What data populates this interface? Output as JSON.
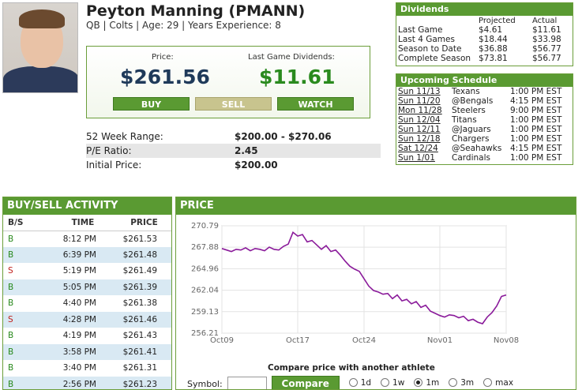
{
  "player": {
    "name": "Peyton Manning (PMANN)",
    "meta": "QB | Colts | Age: 29 | Years Experience: 8"
  },
  "pricebox": {
    "price_label": "Price:",
    "price_value": "$261.56",
    "dividend_label": "Last Game Dividends:",
    "dividend_value": "$11.61",
    "buy_label": "BUY",
    "sell_label": "SELL",
    "watch_label": "WATCH"
  },
  "stats": [
    {
      "label": "52 Week Range:",
      "value": "$200.00 - $270.06"
    },
    {
      "label": "P/E Ratio:",
      "value": "2.45"
    },
    {
      "label": "Initial Price:",
      "value": "$200.00"
    }
  ],
  "dividends": {
    "title": "Dividends",
    "col_projected": "Projected",
    "col_actual": "Actual",
    "rows": [
      {
        "label": "Last Game",
        "projected": "$4.61",
        "actual": "$11.61"
      },
      {
        "label": "Last 4 Games",
        "projected": "$18.44",
        "actual": "$33.98"
      },
      {
        "label": "Season to Date",
        "projected": "$36.88",
        "actual": "$56.77"
      },
      {
        "label": "Complete Season",
        "projected": "$73.81",
        "actual": "$56.77"
      }
    ]
  },
  "schedule": {
    "title": "Upcoming Schedule",
    "rows": [
      {
        "date": "Sun 11/13",
        "opponent": "Texans",
        "time": "1:00 PM EST"
      },
      {
        "date": "Sun 11/20",
        "opponent": "@Bengals",
        "time": "4:15 PM EST"
      },
      {
        "date": "Mon 11/28",
        "opponent": "Steelers",
        "time": "9:00 PM EST"
      },
      {
        "date": "Sun 12/04",
        "opponent": "Titans",
        "time": "1:00 PM EST"
      },
      {
        "date": "Sun 12/11",
        "opponent": "@Jaguars",
        "time": "1:00 PM EST"
      },
      {
        "date": "Sun 12/18",
        "opponent": "Chargers",
        "time": "1:00 PM EST"
      },
      {
        "date": "Sat 12/24",
        "opponent": "@Seahawks",
        "time": "4:15 PM EST"
      },
      {
        "date": "Sun 1/01",
        "opponent": "Cardinals",
        "time": "1:00 PM EST"
      }
    ]
  },
  "activity": {
    "title": "BUY/SELL ACTIVITY",
    "headers": [
      "B/S",
      "TIME",
      "PRICE"
    ],
    "rows": [
      {
        "bs": "B",
        "time": "8:12 PM",
        "price": "$261.53"
      },
      {
        "bs": "B",
        "time": "6:39 PM",
        "price": "$261.48"
      },
      {
        "bs": "S",
        "time": "5:19 PM",
        "price": "$261.49"
      },
      {
        "bs": "B",
        "time": "5:05 PM",
        "price": "$261.39"
      },
      {
        "bs": "B",
        "time": "4:40 PM",
        "price": "$261.38"
      },
      {
        "bs": "S",
        "time": "4:28 PM",
        "price": "$261.46"
      },
      {
        "bs": "B",
        "time": "4:19 PM",
        "price": "$261.43"
      },
      {
        "bs": "B",
        "time": "3:58 PM",
        "price": "$261.41"
      },
      {
        "bs": "B",
        "time": "3:40 PM",
        "price": "$261.31"
      },
      {
        "bs": "B",
        "time": "2:56 PM",
        "price": "$261.23"
      }
    ]
  },
  "price_panel": {
    "title": "PRICE",
    "compare_title": "Compare price with another athlete",
    "symbol_label": "Symbol:",
    "compare_button": "Compare",
    "ranges": [
      {
        "label": "1d",
        "selected": false
      },
      {
        "label": "1w",
        "selected": false
      },
      {
        "label": "1m",
        "selected": true
      },
      {
        "label": "3m",
        "selected": false
      },
      {
        "label": "max",
        "selected": false
      }
    ]
  },
  "chart_data": {
    "type": "line",
    "title": "",
    "xlabel": "",
    "ylabel": "",
    "line_color": "#8a1a9a",
    "grid": true,
    "ylim": [
      256.21,
      270.79
    ],
    "yticks": [
      "270.79",
      "267.88",
      "264.96",
      "262.04",
      "259.13",
      "256.21"
    ],
    "xticks": [
      {
        "label": "Oct09",
        "x": 0
      },
      {
        "label": "Oct17",
        "x": 8
      },
      {
        "label": "Oct24",
        "x": 15
      },
      {
        "label": "Nov01",
        "x": 23
      },
      {
        "label": "Nov08",
        "x": 30
      }
    ],
    "x": [
      0,
      0.5,
      1,
      1.5,
      2,
      2.5,
      3,
      3.5,
      4,
      4.5,
      5,
      5.5,
      6,
      6.5,
      7,
      7.5,
      8,
      8.5,
      9,
      9.5,
      10,
      10.5,
      11,
      11.5,
      12,
      12.5,
      13,
      13.5,
      14,
      14.5,
      15,
      15.5,
      16,
      16.5,
      17,
      17.5,
      18,
      18.5,
      19,
      19.5,
      20,
      20.5,
      21,
      21.5,
      22,
      22.5,
      23,
      23.5,
      24,
      24.5,
      25,
      25.5,
      26,
      26.5,
      27,
      27.5,
      28,
      28.5,
      29,
      29.5,
      30
    ],
    "values": [
      267.7,
      267.5,
      267.3,
      267.6,
      267.5,
      267.8,
      267.4,
      267.7,
      267.6,
      267.4,
      267.9,
      267.6,
      267.5,
      268.0,
      268.3,
      269.9,
      269.4,
      269.6,
      268.6,
      268.8,
      268.2,
      267.6,
      268.1,
      267.3,
      267.5,
      266.8,
      266.0,
      265.3,
      264.9,
      264.6,
      263.6,
      262.6,
      262.0,
      261.8,
      261.5,
      261.6,
      260.9,
      261.4,
      260.6,
      260.8,
      260.2,
      260.5,
      259.7,
      260.0,
      259.2,
      258.9,
      258.6,
      258.4,
      258.7,
      258.6,
      258.3,
      258.5,
      257.9,
      258.1,
      257.7,
      257.5,
      258.4,
      259.0,
      259.9,
      261.2,
      261.4
    ]
  }
}
